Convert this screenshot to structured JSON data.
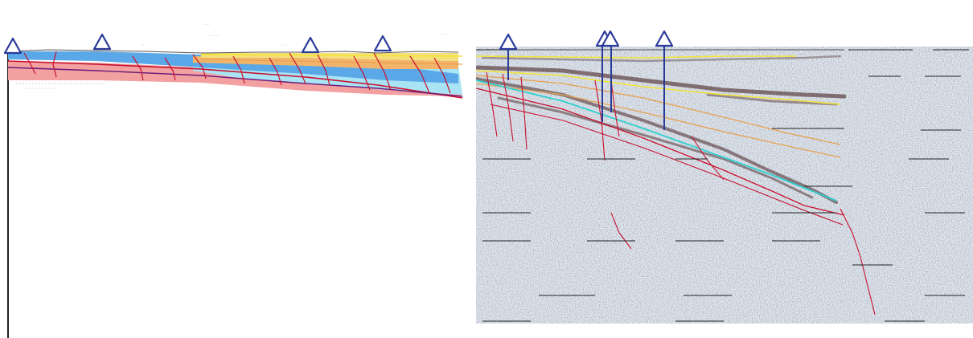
{
  "figure": {
    "labels": {
      "cross_section_note_1": "····",
      "cross_section_note_2": "·······",
      "cross_section_note_3": "···",
      "cross_section_note_4": "······",
      "cross_section_note_5": "·····",
      "cross_section_note_6": "··················"
    },
    "colors": {
      "background": "#ffffff",
      "well_marker": "#2a3a9a",
      "layer_pink": "#f2a0a0",
      "layer_blue_light": "#a8e4f4",
      "layer_blue": "#5aa8e8",
      "layer_yellow": "#f4e07a",
      "layer_orange": "#f2b46a",
      "horizon_yellow": "#f2e436",
      "horizon_orange": "#e8a050",
      "horizon_cyan": "#2ed0d0",
      "fault_red": "#c8102e",
      "seismic_bg": "#e8ecf2",
      "seismic_noise": "#556070",
      "grid_line": "#222222"
    },
    "icons": [
      "well-triangle-icon"
    ]
  }
}
